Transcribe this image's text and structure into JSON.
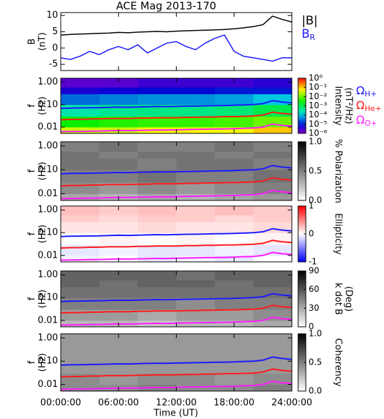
{
  "chart_data": [
    {
      "type": "line",
      "title": "ACE Mag 2013-170",
      "ylabel": [
        "B",
        "(nT)"
      ],
      "x": [
        0,
        1,
        2,
        3,
        4,
        5,
        6,
        7,
        8,
        9,
        10,
        11,
        12,
        13,
        14,
        15,
        16,
        17,
        18,
        19,
        20,
        21,
        22,
        23,
        24
      ],
      "ylim": [
        -6.9,
        10.9
      ],
      "yticks": [
        -5,
        0,
        5,
        10
      ],
      "series": [
        {
          "name": "|B|",
          "color": "#000000",
          "values": [
            4.0,
            4.2,
            4.3,
            4.4,
            4.5,
            4.6,
            4.8,
            4.7,
            4.9,
            5.0,
            5.1,
            5.0,
            5.2,
            5.3,
            5.4,
            5.5,
            5.6,
            5.7,
            5.9,
            6.2,
            6.6,
            7.2,
            9.8,
            8.8,
            8.0
          ]
        },
        {
          "name": "BR",
          "color": "#1a1aff",
          "values": [
            -3.0,
            -3.5,
            -2.5,
            -1.0,
            -2.0,
            -0.5,
            0.5,
            -0.5,
            1.0,
            -1.5,
            0.0,
            1.5,
            2.0,
            0.5,
            -0.5,
            1.5,
            3.0,
            4.0,
            -1.0,
            -2.5,
            -3.0,
            -3.5,
            -4.0,
            -3.0,
            -3.0
          ]
        }
      ]
    },
    {
      "type": "spectrogram",
      "ylabel": [
        "f",
        "(Hz)"
      ],
      "log_y": true,
      "ylim": [
        0.0052,
        1.5
      ],
      "yticks": [
        {
          "value": 1,
          "label": "1.00"
        },
        {
          "value": 0.1,
          "label": "0.10"
        },
        {
          "value": 0.01,
          "label": "0.01"
        }
      ],
      "x_bins": [
        0,
        4,
        8,
        12,
        16,
        20,
        24
      ],
      "y_bins": [
        0.0052,
        0.01,
        0.03,
        0.1,
        0.3,
        0.6,
        1.5
      ],
      "z": [
        [
          0.03,
          0.03,
          0.05,
          0.05,
          0.05,
          0.1
        ],
        [
          0.003,
          0.004,
          0.005,
          0.005,
          0.006,
          0.01
        ],
        [
          0.0003,
          0.0004,
          0.0005,
          0.0005,
          0.0006,
          0.001
        ],
        [
          3e-05,
          4e-05,
          5e-05,
          5e-05,
          6e-05,
          0.0001
        ],
        [
          5e-06,
          6e-06,
          8e-06,
          8e-06,
          1e-05,
          1e-05
        ],
        [
          2e-06,
          2e-06,
          3e-06,
          3e-06,
          3e-06,
          4e-06
        ]
      ],
      "colormap": "rainbow",
      "z_log": true,
      "zlim": [
        1e-06,
        1
      ],
      "zticks": [
        {
          "value": 1,
          "label": "10⁰"
        },
        {
          "value": 0.1,
          "label": "10⁻¹"
        },
        {
          "value": 0.01,
          "label": "10⁻²"
        },
        {
          "value": 0.001,
          "label": "10⁻³"
        },
        {
          "value": 0.0001,
          "label": "10⁻⁴"
        },
        {
          "value": 1e-05,
          "label": "10⁻⁵"
        },
        {
          "value": 1e-06,
          "label": "10⁻⁶"
        }
      ],
      "zlabel": [
        "Intensity",
        "(nT²/Hz)"
      ],
      "x": [
        0,
        1,
        2,
        3,
        4,
        5,
        6,
        7,
        8,
        9,
        10,
        11,
        12,
        13,
        14,
        15,
        16,
        17,
        18,
        19,
        20,
        21,
        22,
        23,
        24
      ],
      "series": [
        {
          "name": "ΩH+",
          "color": "#1a1aff",
          "values": [
            0.068,
            0.07,
            0.071,
            0.072,
            0.073,
            0.075,
            0.077,
            0.076,
            0.078,
            0.08,
            0.082,
            0.081,
            0.083,
            0.085,
            0.086,
            0.088,
            0.09,
            0.091,
            0.093,
            0.097,
            0.1,
            0.11,
            0.15,
            0.13,
            0.12
          ]
        },
        {
          "name": "ΩHe+",
          "color": "#ff1a1a",
          "values": [
            0.021,
            0.022,
            0.022,
            0.023,
            0.023,
            0.024,
            0.024,
            0.024,
            0.025,
            0.025,
            0.026,
            0.026,
            0.026,
            0.027,
            0.027,
            0.028,
            0.028,
            0.029,
            0.029,
            0.03,
            0.031,
            0.034,
            0.046,
            0.04,
            0.037
          ]
        },
        {
          "name": "ΩO+",
          "color": "#ff1aff",
          "values": [
            0.0062,
            0.0063,
            0.0064,
            0.0065,
            0.0066,
            0.0068,
            0.007,
            0.0069,
            0.0071,
            0.0072,
            0.0074,
            0.0073,
            0.0075,
            0.0077,
            0.0078,
            0.008,
            0.0081,
            0.0082,
            0.0084,
            0.0088,
            0.009,
            0.01,
            0.0136,
            0.0118,
            0.011
          ]
        }
      ]
    },
    {
      "type": "spectrogram",
      "ylabel": [
        "f",
        "(Hz)"
      ],
      "log_y": true,
      "ylim": [
        0.0052,
        1.5
      ],
      "yticks": [
        {
          "value": 1,
          "label": "1.00"
        },
        {
          "value": 0.1,
          "label": "0.10"
        },
        {
          "value": 0.01,
          "label": "0.01"
        }
      ],
      "x_bins": [
        0,
        4,
        8,
        12,
        16,
        20,
        24
      ],
      "y_bins": [
        0.0052,
        0.01,
        0.03,
        0.1,
        0.3,
        0.6,
        1.5
      ],
      "z": [
        [
          0.35,
          0.3,
          0.35,
          0.3,
          0.35,
          0.4
        ],
        [
          0.45,
          0.4,
          0.45,
          0.4,
          0.45,
          0.5
        ],
        [
          0.5,
          0.5,
          0.55,
          0.5,
          0.5,
          0.55
        ],
        [
          0.55,
          0.55,
          0.5,
          0.55,
          0.55,
          0.5
        ],
        [
          0.55,
          0.5,
          0.55,
          0.55,
          0.5,
          0.55
        ],
        [
          0.5,
          0.55,
          0.5,
          0.5,
          0.55,
          0.5
        ]
      ],
      "colormap": "gray",
      "zlim": [
        0,
        1
      ],
      "zticks": [
        {
          "value": 1,
          "label": "1.0"
        },
        0.5,
        {
          "value": 0,
          "label": "0.0"
        }
      ],
      "zlabel": [
        "% Polarization"
      ]
    },
    {
      "type": "spectrogram",
      "ylabel": [
        "f",
        "(Hz)"
      ],
      "log_y": true,
      "ylim": [
        0.0052,
        1.5
      ],
      "yticks": [
        {
          "value": 1,
          "label": "1.00"
        },
        {
          "value": 0.1,
          "label": "0.10"
        },
        {
          "value": 0.01,
          "label": "0.01"
        }
      ],
      "x_bins": [
        0,
        4,
        8,
        12,
        16,
        20,
        24
      ],
      "y_bins": [
        0.0052,
        0.01,
        0.03,
        0.1,
        0.3,
        0.6,
        1.5
      ],
      "z": [
        [
          -0.05,
          0.0,
          -0.1,
          -0.05,
          -0.1,
          0.0
        ],
        [
          -0.1,
          -0.05,
          -0.1,
          -0.1,
          -0.05,
          -0.1
        ],
        [
          0.0,
          0.05,
          0.0,
          0.05,
          0.0,
          0.05
        ],
        [
          0.1,
          0.1,
          0.15,
          0.1,
          0.1,
          0.15
        ],
        [
          0.2,
          0.15,
          0.2,
          0.2,
          0.15,
          0.2
        ],
        [
          0.25,
          0.2,
          0.25,
          0.2,
          0.25,
          0.2
        ]
      ],
      "colormap": "bwr",
      "zlim": [
        -1,
        1
      ],
      "zticks": [
        1,
        0,
        -1
      ],
      "zlabel": [
        "Ellipticity"
      ]
    },
    {
      "type": "spectrogram",
      "ylabel": [
        "f",
        "(Hz)"
      ],
      "log_y": true,
      "ylim": [
        0.0052,
        1.5
      ],
      "yticks": [
        {
          "value": 1,
          "label": "1.00"
        },
        {
          "value": 0.1,
          "label": "0.10"
        },
        {
          "value": 0.01,
          "label": "0.01"
        }
      ],
      "x_bins": [
        0,
        4,
        8,
        12,
        16,
        20,
        24
      ],
      "y_bins": [
        0.0052,
        0.01,
        0.03,
        0.1,
        0.3,
        0.6,
        1.5
      ],
      "z": [
        [
          25,
          25,
          20,
          25,
          25,
          30
        ],
        [
          35,
          35,
          30,
          35,
          35,
          40
        ],
        [
          45,
          45,
          45,
          40,
          45,
          45
        ],
        [
          50,
          50,
          50,
          50,
          50,
          50
        ],
        [
          55,
          50,
          55,
          55,
          50,
          55
        ],
        [
          55,
          55,
          55,
          50,
          55,
          55
        ]
      ],
      "colormap": "gray",
      "zlim": [
        0,
        90
      ],
      "zticks": [
        90,
        60,
        30,
        0
      ],
      "zlabel": [
        "k dot B",
        "(Deg)"
      ]
    },
    {
      "type": "spectrogram",
      "ylabel": [
        "f",
        "(Hz)"
      ],
      "log_y": true,
      "ylim": [
        0.0052,
        1.5
      ],
      "yticks": [
        {
          "value": 1,
          "label": "1.00"
        },
        {
          "value": 0.1,
          "label": "0.10"
        },
        {
          "value": 0.01,
          "label": "0.01"
        }
      ],
      "x_bins": [
        0,
        4,
        8,
        12,
        16,
        20,
        24
      ],
      "y_bins": [
        0.0052,
        0.01,
        0.03,
        0.1,
        0.3,
        0.6,
        1.5
      ],
      "z": [
        [
          0.45,
          0.45,
          0.5,
          0.45,
          0.45,
          0.5
        ],
        [
          0.45,
          0.4,
          0.45,
          0.45,
          0.4,
          0.45
        ],
        [
          0.4,
          0.4,
          0.4,
          0.4,
          0.4,
          0.4
        ],
        [
          0.4,
          0.4,
          0.4,
          0.4,
          0.4,
          0.4
        ],
        [
          0.4,
          0.4,
          0.4,
          0.4,
          0.4,
          0.4
        ],
        [
          0.4,
          0.4,
          0.4,
          0.4,
          0.4,
          0.4
        ]
      ],
      "colormap": "gray",
      "zlim": [
        0,
        1
      ],
      "zticks": [
        {
          "value": 1,
          "label": "1.0"
        },
        0.5,
        {
          "value": 0,
          "label": "0.0"
        }
      ],
      "zlabel": [
        "Coherency"
      ],
      "xlim": [
        0,
        24
      ],
      "xticks": [
        {
          "value": 0,
          "label": "00:00:00"
        },
        {
          "value": 6,
          "label": "06:00:00"
        },
        {
          "value": 12,
          "label": "12:00:00"
        },
        {
          "value": 18,
          "label": "18:00:00"
        },
        {
          "value": 24,
          "label": "24:00:00"
        }
      ],
      "xlabel": "Time (UT)"
    }
  ]
}
